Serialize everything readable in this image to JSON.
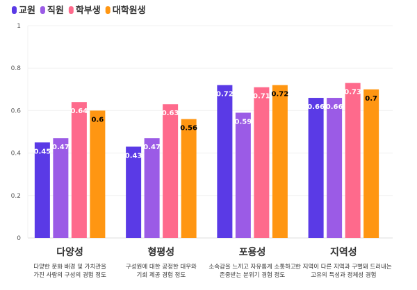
{
  "chart_data": {
    "type": "bar",
    "title": "",
    "xlabel": "",
    "ylabel": "",
    "ylim": [
      0,
      1
    ],
    "yticks": [
      "0",
      "0.2",
      "0.4",
      "0.6",
      "0.8",
      "1"
    ],
    "grid": true,
    "legend_position": "top-left",
    "categories": [
      "다양성",
      "형평성",
      "포용성",
      "지역성"
    ],
    "category_descriptions": [
      [
        "다양한 문화 배경 및 가치관을",
        "가진 사람의 구성의 경험 정도"
      ],
      [
        "구성원에 대한 공정한 대우와",
        "기회 제공 경험 정도"
      ],
      [
        "소속감을 느끼고 자유롭게 소통하고",
        "존중받는 분위기 경험 정도"
      ],
      [
        "한 지역이 다른 지역과 구별돼 드러내는",
        "고유의 특성과 정체성 경험"
      ]
    ],
    "series": [
      {
        "name": "교원",
        "color": "#5a3ae6",
        "values": [
          0.45,
          0.43,
          0.72,
          0.66
        ]
      },
      {
        "name": "직원",
        "color": "#9b5be6",
        "values": [
          0.47,
          0.47,
          0.59,
          0.66
        ]
      },
      {
        "name": "학부생",
        "color": "#fe6a8c",
        "values": [
          0.64,
          0.63,
          0.71,
          0.73
        ]
      },
      {
        "name": "대학원생",
        "color": "#ff9612",
        "values": [
          0.6,
          0.56,
          0.72,
          0.7
        ]
      }
    ]
  }
}
